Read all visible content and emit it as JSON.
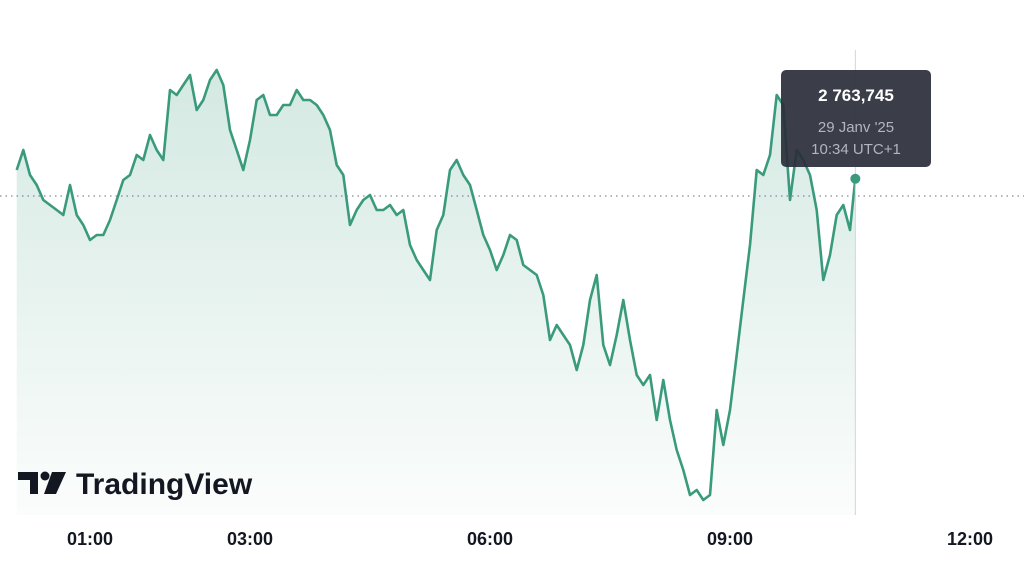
{
  "chart_data": {
    "type": "area",
    "color": "#3a9a7c",
    "brand": "TradingView",
    "x": [
      5,
      10,
      15,
      20,
      25,
      30,
      35,
      40,
      45,
      50,
      55,
      60,
      65,
      70,
      75,
      80,
      85,
      90,
      95,
      100,
      105,
      110,
      115,
      120,
      125,
      130,
      135,
      140,
      145,
      150,
      155,
      160,
      165,
      170,
      175,
      180,
      185,
      190,
      195,
      200,
      205,
      210,
      215,
      220,
      225,
      230,
      235,
      240,
      245,
      250,
      255,
      260,
      265,
      270,
      275,
      280,
      285,
      290,
      295,
      300,
      305,
      310,
      315,
      320,
      325,
      330,
      335,
      340,
      345,
      350,
      355,
      360,
      365,
      370,
      375,
      380,
      385,
      390,
      395,
      400,
      405,
      410,
      415,
      420,
      425,
      430,
      435,
      440,
      445,
      450,
      455,
      460,
      465,
      470,
      475,
      480,
      485,
      490,
      495,
      500,
      505,
      510,
      515,
      520,
      525,
      530,
      535,
      540,
      545,
      550,
      555,
      560,
      565,
      570,
      575,
      580,
      585,
      590,
      595,
      600,
      605,
      610,
      615,
      620,
      625,
      630,
      634
    ],
    "values": [
      2765.5,
      2769.5,
      2764.5,
      2762.5,
      2759.5,
      2758.5,
      2757.5,
      2756.5,
      2762.5,
      2756.5,
      2754.5,
      2751.5,
      2752.5,
      2752.5,
      2755.5,
      2759.5,
      2763.5,
      2764.5,
      2768.5,
      2767.5,
      2772.5,
      2769.5,
      2767.5,
      2781.5,
      2780.5,
      2782.5,
      2784.5,
      2777.5,
      2779.5,
      2783.5,
      2785.5,
      2782.5,
      2773.5,
      2769.5,
      2765.5,
      2771.5,
      2779.5,
      2780.5,
      2776.5,
      2776.5,
      2778.5,
      2778.5,
      2781.5,
      2779.5,
      2779.5,
      2778.5,
      2776.5,
      2773.5,
      2766.5,
      2764.5,
      2754.5,
      2757.5,
      2759.5,
      2760.5,
      2757.5,
      2757.5,
      2758.5,
      2756.5,
      2757.5,
      2750.5,
      2747.5,
      2745.5,
      2743.5,
      2753.5,
      2756.5,
      2765.5,
      2767.5,
      2764.5,
      2762.5,
      2757.5,
      2752.5,
      2749.5,
      2745.5,
      2748.5,
      2752.5,
      2751.5,
      2746.5,
      2745.5,
      2744.5,
      2740.5,
      2731.5,
      2734.5,
      2732.5,
      2730.5,
      2725.5,
      2730.5,
      2739.5,
      2744.5,
      2730.5,
      2726.5,
      2732.5,
      2739.5,
      2731.5,
      2724.5,
      2722.5,
      2724.5,
      2715.5,
      2723.5,
      2715.5,
      2709.5,
      2705.5,
      2700.5,
      2701.5,
      2699.5,
      2700.5,
      2717.5,
      2710.5,
      2717.5,
      2728.5,
      2739.5,
      2750.5,
      2765.5,
      2764.5,
      2768.5,
      2780.5,
      2778.5,
      2759.5,
      2769.5,
      2767.5,
      2764.5,
      2757.5,
      2743.5,
      2748.5,
      2756.5,
      2758.5,
      2753.5,
      2763.745
    ],
    "xlim": [
      -7.5,
      760.5
    ],
    "xticks": [
      {
        "value": 60,
        "label": "01:00"
      },
      {
        "value": 180,
        "label": "03:00"
      },
      {
        "value": 360,
        "label": "06:00"
      },
      {
        "value": 540,
        "label": "09:00"
      },
      {
        "value": 720,
        "label": "12:00"
      }
    ],
    "ylim": [
      2696.5,
      2791.5
    ],
    "baseline": 2760.3,
    "tooltip": {
      "value": 2763.745,
      "label": "2 763,745",
      "date": "29 Janv '25",
      "time": "10:34 UTC+1"
    }
  }
}
